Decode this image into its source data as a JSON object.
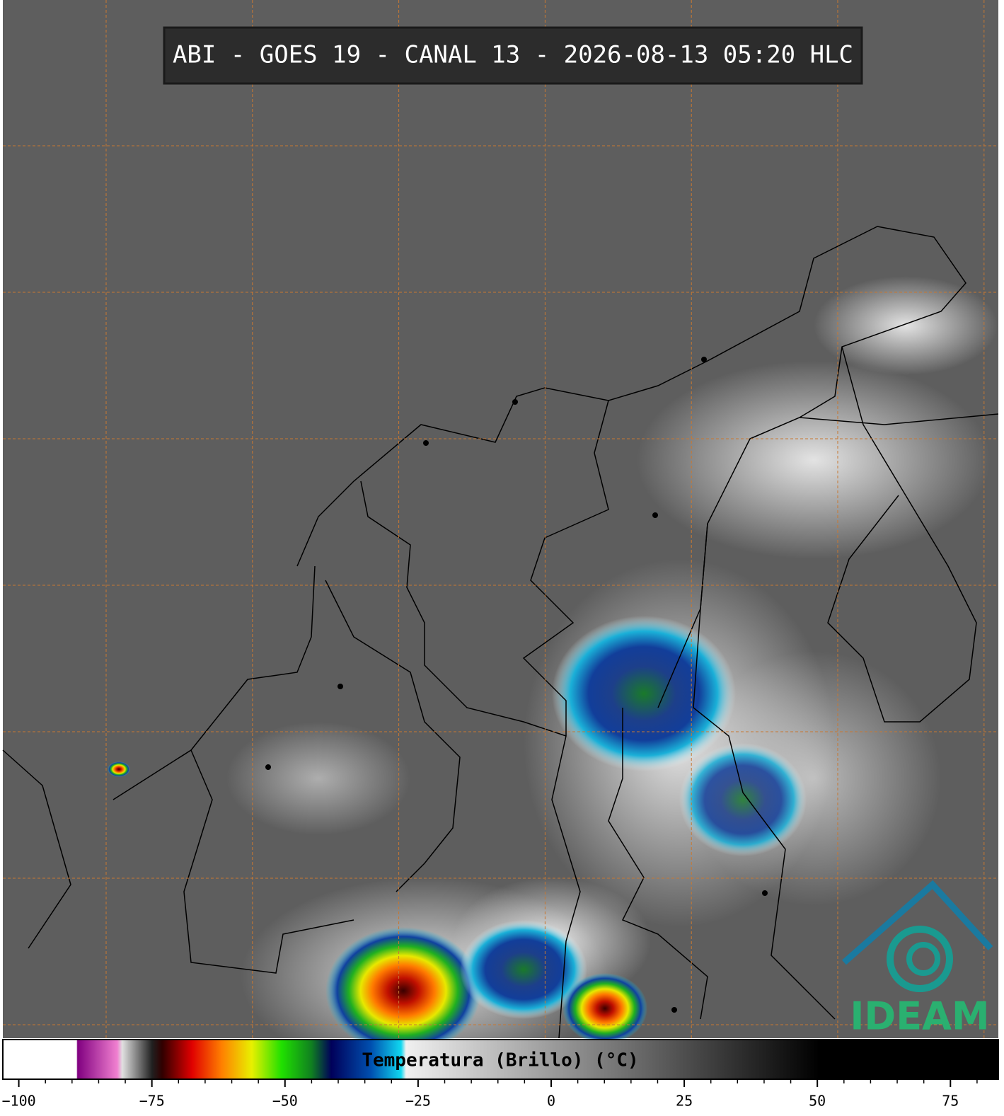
{
  "title": "ABI - GOES 19 - CANAL 13 - 2026-08-13 05:20 HLC",
  "logo": "IDEAM",
  "colorbar": {
    "label": "Temperatura (Brillo) (°C)",
    "xlim": [
      -103,
      84
    ],
    "xticks": [
      {
        "value": -100,
        "label": "−100"
      },
      {
        "value": -75,
        "label": "−75"
      },
      {
        "value": -50,
        "label": "−50"
      },
      {
        "value": -25,
        "label": "−25"
      },
      0,
      25,
      50,
      75
    ]
  }
}
